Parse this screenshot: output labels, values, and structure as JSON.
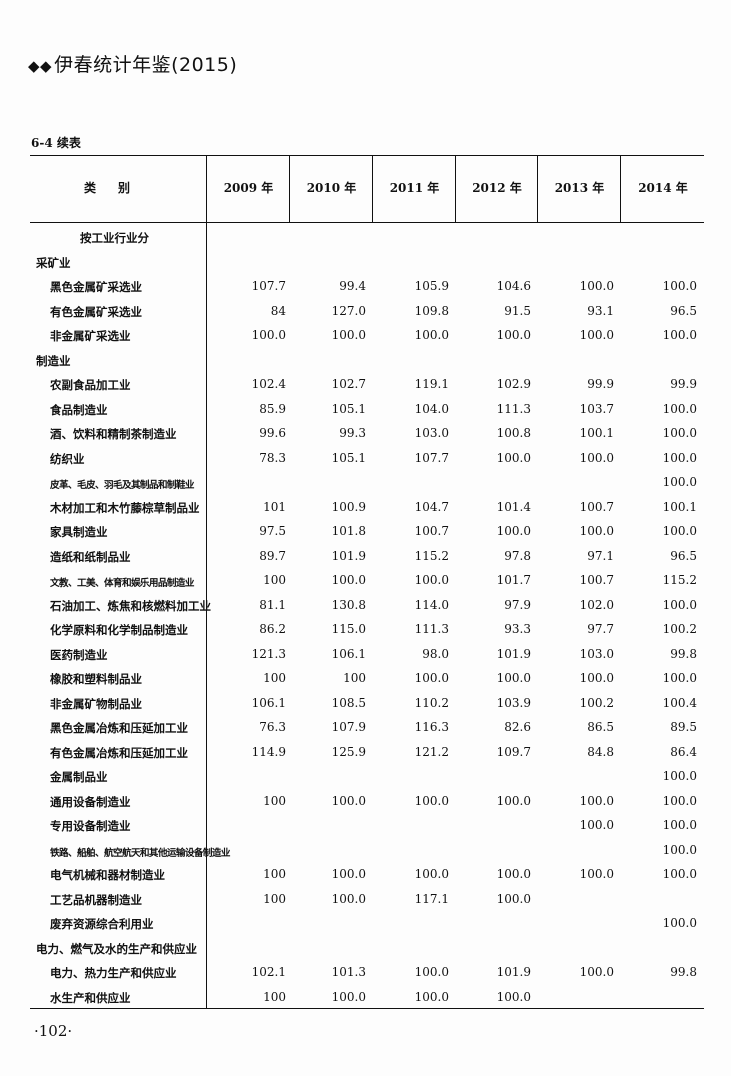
{
  "header": {
    "title": "伊春统计年鉴(2015)",
    "marker": "◆◆"
  },
  "table_number": "6-4  续表",
  "table": {
    "columns": [
      "类别",
      "2009 年",
      "2010 年",
      "2011 年",
      "2012 年",
      "2013 年",
      "2014 年"
    ],
    "rows": [
      {
        "label": "按工业行业分",
        "level": "center",
        "values": [
          "",
          "",
          "",
          "",
          "",
          ""
        ]
      },
      {
        "label": "采矿业",
        "level": 0,
        "values": [
          "",
          "",
          "",
          "",
          "",
          ""
        ]
      },
      {
        "label": "黑色金属矿采选业",
        "level": 1,
        "values": [
          "107.7",
          "99.4",
          "105.9",
          "104.6",
          "100.0",
          "100.0"
        ]
      },
      {
        "label": "有色金属矿采选业",
        "level": 1,
        "values": [
          "84",
          "127.0",
          "109.8",
          "91.5",
          "93.1",
          "96.5"
        ]
      },
      {
        "label": "非金属矿采选业",
        "level": 1,
        "values": [
          "100.0",
          "100.0",
          "100.0",
          "100.0",
          "100.0",
          "100.0"
        ]
      },
      {
        "label": "制造业",
        "level": 0,
        "values": [
          "",
          "",
          "",
          "",
          "",
          ""
        ]
      },
      {
        "label": "农副食品加工业",
        "level": 1,
        "values": [
          "102.4",
          "102.7",
          "119.1",
          "102.9",
          "99.9",
          "99.9"
        ]
      },
      {
        "label": "食品制造业",
        "level": 1,
        "values": [
          "85.9",
          "105.1",
          "104.0",
          "111.3",
          "103.7",
          "100.0"
        ]
      },
      {
        "label": "酒、饮料和精制茶制造业",
        "level": 1,
        "values": [
          "99.6",
          "99.3",
          "103.0",
          "100.8",
          "100.1",
          "100.0"
        ]
      },
      {
        "label": "纺织业",
        "level": 1,
        "values": [
          "78.3",
          "105.1",
          "107.7",
          "100.0",
          "100.0",
          "100.0"
        ]
      },
      {
        "label": "皮革、毛皮、羽毛及其制品和制鞋业",
        "level": 1,
        "small": true,
        "values": [
          "",
          "",
          "",
          "",
          "",
          "100.0"
        ]
      },
      {
        "label": "木材加工和木竹藤棕草制品业",
        "level": 1,
        "values": [
          "101",
          "100.9",
          "104.7",
          "101.4",
          "100.7",
          "100.1"
        ]
      },
      {
        "label": "家具制造业",
        "level": 1,
        "values": [
          "97.5",
          "101.8",
          "100.7",
          "100.0",
          "100.0",
          "100.0"
        ]
      },
      {
        "label": "造纸和纸制品业",
        "level": 1,
        "values": [
          "89.7",
          "101.9",
          "115.2",
          "97.8",
          "97.1",
          "96.5"
        ]
      },
      {
        "label": "文教、工美、体育和娱乐用品制造业",
        "level": 1,
        "small": true,
        "values": [
          "100",
          "100.0",
          "100.0",
          "101.7",
          "100.7",
          "115.2"
        ]
      },
      {
        "label": "石油加工、炼焦和核燃料加工业",
        "level": 1,
        "values": [
          "81.1",
          "130.8",
          "114.0",
          "97.9",
          "102.0",
          "100.0"
        ]
      },
      {
        "label": "化学原料和化学制品制造业",
        "level": 1,
        "values": [
          "86.2",
          "115.0",
          "111.3",
          "93.3",
          "97.7",
          "100.2"
        ]
      },
      {
        "label": "医药制造业",
        "level": 1,
        "values": [
          "121.3",
          "106.1",
          "98.0",
          "101.9",
          "103.0",
          "99.8"
        ]
      },
      {
        "label": "橡胶和塑料制品业",
        "level": 1,
        "values": [
          "100",
          "100",
          "100.0",
          "100.0",
          "100.0",
          "100.0"
        ]
      },
      {
        "label": "非金属矿物制品业",
        "level": 1,
        "values": [
          "106.1",
          "108.5",
          "110.2",
          "103.9",
          "100.2",
          "100.4"
        ]
      },
      {
        "label": "黑色金属冶炼和压延加工业",
        "level": 1,
        "values": [
          "76.3",
          "107.9",
          "116.3",
          "82.6",
          "86.5",
          "89.5"
        ]
      },
      {
        "label": "有色金属冶炼和压延加工业",
        "level": 1,
        "values": [
          "114.9",
          "125.9",
          "121.2",
          "109.7",
          "84.8",
          "86.4"
        ]
      },
      {
        "label": "金属制品业",
        "level": 1,
        "values": [
          "",
          "",
          "",
          "",
          "",
          "100.0"
        ]
      },
      {
        "label": "通用设备制造业",
        "level": 1,
        "values": [
          "100",
          "100.0",
          "100.0",
          "100.0",
          "100.0",
          "100.0"
        ]
      },
      {
        "label": "专用设备制造业",
        "level": 1,
        "values": [
          "",
          "",
          "",
          "",
          "100.0",
          "100.0"
        ]
      },
      {
        "label": "铁路、船舶、航空航天和其他运输设备制造业",
        "level": 1,
        "small": true,
        "values": [
          "",
          "",
          "",
          "",
          "",
          "100.0"
        ]
      },
      {
        "label": "电气机械和器材制造业",
        "level": 1,
        "values": [
          "100",
          "100.0",
          "100.0",
          "100.0",
          "100.0",
          "100.0"
        ]
      },
      {
        "label": "工艺品机器制造业",
        "level": 1,
        "values": [
          "100",
          "100.0",
          "117.1",
          "100.0",
          "",
          ""
        ]
      },
      {
        "label": "废弃资源综合利用业",
        "level": 1,
        "values": [
          "",
          "",
          "",
          "",
          "",
          "100.0"
        ]
      },
      {
        "label": "电力、燃气及水的生产和供应业",
        "level": 0,
        "values": [
          "",
          "",
          "",
          "",
          "",
          ""
        ]
      },
      {
        "label": "电力、热力生产和供应业",
        "level": 1,
        "values": [
          "102.1",
          "101.3",
          "100.0",
          "101.9",
          "100.0",
          "99.8"
        ]
      },
      {
        "label": "水生产和供应业",
        "level": 1,
        "values": [
          "100",
          "100.0",
          "100.0",
          "100.0",
          "",
          ""
        ]
      }
    ]
  },
  "page_number": "·102·"
}
